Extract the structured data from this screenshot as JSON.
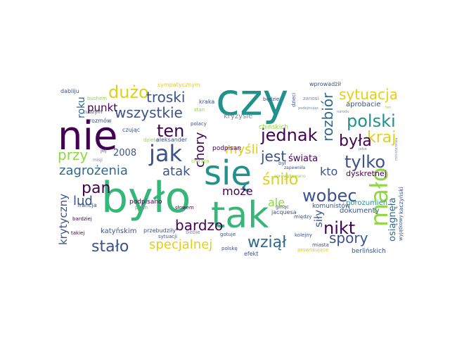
{
  "wordcloud": {
    "palette": {
      "dark_purple": "#440154",
      "indigo": "#3b528b",
      "blue": "#31688e",
      "teal": "#21918c",
      "green": "#35b779",
      "lime": "#90d743",
      "yellow": "#e0d01a",
      "grey": "#7a8ca0"
    },
    "words": [
      {
        "text": "czy"
      },
      {
        "text": "nie"
      },
      {
        "text": "było"
      },
      {
        "text": "się"
      },
      {
        "text": "tak"
      },
      {
        "text": "jak"
      },
      {
        "text": "mało"
      },
      {
        "text": "dużo"
      },
      {
        "text": "troski"
      },
      {
        "text": "wszystkie"
      },
      {
        "text": "ten"
      },
      {
        "text": "jednak"
      },
      {
        "text": "polski"
      },
      {
        "text": "sytuacja"
      },
      {
        "text": "rozbiór"
      },
      {
        "text": "kraj"
      },
      {
        "text": "była"
      },
      {
        "text": "tylko"
      },
      {
        "text": "wobec"
      },
      {
        "text": "nikt"
      },
      {
        "text": "spory"
      },
      {
        "text": "wziął"
      },
      {
        "text": "bardzo"
      },
      {
        "text": "specjalnej"
      },
      {
        "text": "stało"
      },
      {
        "text": "pan"
      },
      {
        "text": "lud"
      },
      {
        "text": "zagrożenia"
      },
      {
        "text": "przy"
      },
      {
        "text": "2008"
      },
      {
        "text": "punkt"
      },
      {
        "text": "roku"
      },
      {
        "text": "krytyczny"
      },
      {
        "text": "atak"
      },
      {
        "text": "myśli"
      },
      {
        "text": "chory"
      },
      {
        "text": "jest"
      },
      {
        "text": "świata"
      },
      {
        "text": "śniło"
      },
      {
        "text": "kto"
      },
      {
        "text": "może"
      },
      {
        "text": "ale"
      },
      {
        "text": "siły"
      },
      {
        "text": "osiągnęła"
      },
      {
        "text": "dyskretnej"
      },
      {
        "text": "aprobacie"
      },
      {
        "text": "dokumenty"
      },
      {
        "text": "kryzysie"
      },
      {
        "text": "chińskich"
      },
      {
        "text": "podpisan"
      },
      {
        "text": "podpisano"
      },
      {
        "text": "komunistów"
      },
      {
        "text": "porozumień"
      },
      {
        "text": "berlińskich"
      },
      {
        "text": "katyńskim"
      },
      {
        "text": "przebudziły"
      },
      {
        "text": "sympatycznym"
      },
      {
        "text": "wprowadził"
      },
      {
        "text": "dabliju"
      },
      {
        "text": "bushem"
      },
      {
        "text": "kraka"
      },
      {
        "text": "będzie"
      },
      {
        "text": "dzieci"
      },
      {
        "text": "zanosi"
      },
      {
        "text": "cudzym"
      },
      {
        "text": "stan"
      },
      {
        "text": "rozmów"
      },
      {
        "text": "polacy"
      },
      {
        "text": "czując"
      },
      {
        "text": "dzielą"
      },
      {
        "text": "aleksander"
      },
      {
        "text": "jej"
      },
      {
        "text": "był"
      },
      {
        "text": "zapewniła"
      },
      {
        "text": "francja"
      },
      {
        "text": "putin"
      },
      {
        "text": "słowem"
      },
      {
        "text": "ginąc"
      },
      {
        "text": "jacquesa"
      },
      {
        "text": "między"
      },
      {
        "text": "bardziej"
      },
      {
        "text": "takiej"
      },
      {
        "text": "polskę"
      },
      {
        "text": "gotuje"
      },
      {
        "text": "kolejny"
      },
      {
        "text": "efekt"
      },
      {
        "text": "miasta"
      },
      {
        "text": "sytuacji"
      },
      {
        "text": "siebie"
      },
      {
        "text": "wyjątkowy"
      },
      {
        "text": "kaczyński"
      },
      {
        "text": "misji"
      },
      {
        "text": "chiraca"
      },
      {
        "text": "podejmując"
      },
      {
        "text": "narodu"
      },
      {
        "text": "jakie"
      },
      {
        "text": "ten"
      },
      {
        "text": "prowokujące"
      },
      {
        "text": "sprowokowano"
      },
      {
        "text": "ministerstwa"
      }
    ]
  }
}
